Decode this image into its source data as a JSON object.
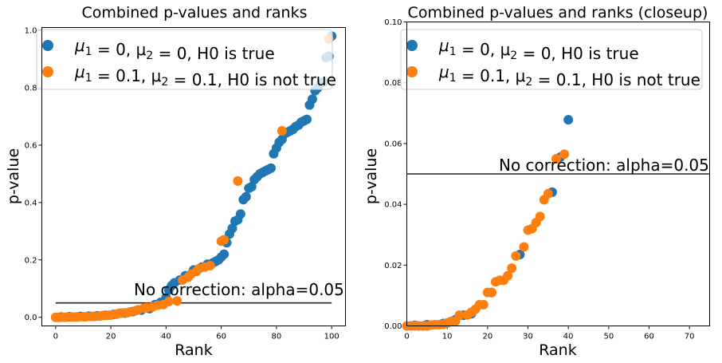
{
  "chart_data": [
    {
      "type": "scatter",
      "title": "Combined p-values and ranks",
      "xlabel": "Rank",
      "ylabel": "p-value",
      "xlim": [
        -5,
        105
      ],
      "ylim": [
        -0.03,
        1.01
      ],
      "xticks": [
        0,
        20,
        40,
        60,
        80,
        100
      ],
      "yticks": [
        0.0,
        0.2,
        0.4,
        0.6,
        0.8,
        1.0
      ],
      "xtick_labels": [
        "0",
        "20",
        "40",
        "60",
        "80",
        "100"
      ],
      "ytick_labels": [
        "0.0",
        "0.2",
        "0.4",
        "0.6",
        "0.8",
        "1.0"
      ],
      "legend_position": "top",
      "hline": {
        "y": 0.05,
        "x": [
          0,
          100
        ],
        "label": "No correction: alpha=0.05"
      },
      "series": [
        {
          "name_parts": {
            "pre": "μ",
            "sub1": "1",
            "mid": " = 0, μ",
            "sub2": "2",
            "post": " = 0, H0 is true"
          },
          "color": "#1f77b4",
          "points": [
            [
              2,
              0.001
            ],
            [
              5,
              0.002
            ],
            [
              9,
              0.003
            ],
            [
              12,
              0.004
            ],
            [
              15,
              0.005
            ],
            [
              18,
              0.007
            ],
            [
              21,
              0.01
            ],
            [
              25,
              0.015
            ],
            [
              28,
              0.02
            ],
            [
              31,
              0.025
            ],
            [
              34,
              0.03
            ],
            [
              36,
              0.044
            ],
            [
              38,
              0.052
            ],
            [
              40,
              0.068
            ],
            [
              41,
              0.095
            ],
            [
              42,
              0.11
            ],
            [
              43,
              0.12
            ],
            [
              45,
              0.13
            ],
            [
              47,
              0.145
            ],
            [
              50,
              0.165
            ],
            [
              53,
              0.175
            ],
            [
              55,
              0.185
            ],
            [
              57,
              0.19
            ],
            [
              58,
              0.195
            ],
            [
              59,
              0.2
            ],
            [
              60,
              0.21
            ],
            [
              61,
              0.22
            ],
            [
              62,
              0.26
            ],
            [
              63,
              0.29
            ],
            [
              64,
              0.31
            ],
            [
              65,
              0.335
            ],
            [
              66,
              0.34
            ],
            [
              67,
              0.36
            ],
            [
              68,
              0.41
            ],
            [
              69,
              0.42
            ],
            [
              70,
              0.45
            ],
            [
              71,
              0.455
            ],
            [
              72,
              0.48
            ],
            [
              73,
              0.49
            ],
            [
              74,
              0.5
            ],
            [
              75,
              0.505
            ],
            [
              76,
              0.51
            ],
            [
              77,
              0.515
            ],
            [
              78,
              0.52
            ],
            [
              79,
              0.57
            ],
            [
              80,
              0.59
            ],
            [
              81,
              0.61
            ],
            [
              82,
              0.62
            ],
            [
              83,
              0.64
            ],
            [
              84,
              0.645
            ],
            [
              85,
              0.65
            ],
            [
              86,
              0.655
            ],
            [
              87,
              0.665
            ],
            [
              88,
              0.67
            ],
            [
              89,
              0.68
            ],
            [
              90,
              0.685
            ],
            [
              91,
              0.69
            ],
            [
              92,
              0.74
            ],
            [
              93,
              0.76
            ],
            [
              94,
              0.79
            ],
            [
              95,
              0.8
            ],
            [
              96,
              0.815
            ],
            [
              97,
              0.82
            ],
            [
              98,
              0.905
            ],
            [
              99,
              0.91
            ],
            [
              100,
              0.98
            ]
          ]
        },
        {
          "name_parts": {
            "pre": "μ",
            "sub1": "1",
            "mid": " = 0.1, μ",
            "sub2": "2",
            "post": " = 0.1, H0 is not true"
          },
          "color": "#ff7f0e",
          "points": [
            [
              0,
              0.0
            ],
            [
              1,
              0.0
            ],
            [
              3,
              0.0002
            ],
            [
              4,
              0.0005
            ],
            [
              6,
              0.0008
            ],
            [
              7,
              0.001
            ],
            [
              8,
              0.0015
            ],
            [
              10,
              0.0018
            ],
            [
              11,
              0.002
            ],
            [
              13,
              0.003
            ],
            [
              14,
              0.0035
            ],
            [
              16,
              0.0045
            ],
            [
              17,
              0.006
            ],
            [
              19,
              0.007
            ],
            [
              20,
              0.008
            ],
            [
              22,
              0.011
            ],
            [
              23,
              0.014
            ],
            [
              24,
              0.015
            ],
            [
              26,
              0.016
            ],
            [
              27,
              0.019
            ],
            [
              29,
              0.023
            ],
            [
              30,
              0.026
            ],
            [
              32,
              0.032
            ],
            [
              33,
              0.034
            ],
            [
              35,
              0.036
            ],
            [
              37,
              0.042
            ],
            [
              39,
              0.044
            ],
            [
              41,
              0.055
            ],
            [
              44,
              0.057
            ],
            [
              46,
              0.13
            ],
            [
              48,
              0.14
            ],
            [
              49,
              0.15
            ],
            [
              51,
              0.16
            ],
            [
              52,
              0.17
            ],
            [
              54,
              0.175
            ],
            [
              56,
              0.18
            ],
            [
              60,
              0.265
            ],
            [
              61,
              0.27
            ],
            [
              66,
              0.475
            ],
            [
              82,
              0.65
            ],
            [
              99,
              0.97
            ]
          ]
        }
      ]
    },
    {
      "type": "scatter",
      "title": "Combined p-values and ranks (closeup)",
      "xlabel": "Rank",
      "ylabel": "p-value",
      "xlim": [
        0,
        75
      ],
      "ylim": [
        0.0,
        0.1
      ],
      "xticks": [
        0,
        10,
        20,
        30,
        40,
        50,
        60,
        70
      ],
      "yticks": [
        0.0,
        0.02,
        0.04,
        0.06,
        0.08,
        0.1
      ],
      "xtick_labels": [
        "0",
        "10",
        "20",
        "30",
        "40",
        "50",
        "60",
        "70"
      ],
      "ytick_labels": [
        "0.00",
        "0.02",
        "0.04",
        "0.06",
        "0.08",
        "0.10"
      ],
      "legend_position": "top",
      "hline": {
        "y": 0.05,
        "x": [
          0,
          75
        ],
        "label": "No correction: alpha=0.05"
      },
      "series": [
        {
          "name_parts": {
            "pre": "μ",
            "sub1": "1",
            "mid": " = 0, μ",
            "sub2": "2",
            "post": " = 0, H0 is true"
          },
          "color": "#1f77b4",
          "points": [
            [
              2,
              0.0002
            ],
            [
              5,
              0.0004
            ],
            [
              9,
              0.0008
            ],
            [
              12,
              0.002
            ],
            [
              14,
              0.0035
            ],
            [
              16,
              0.004
            ],
            [
              21,
              0.011
            ],
            [
              28,
              0.0235
            ],
            [
              36,
              0.044
            ],
            [
              38,
              0.0555
            ],
            [
              40,
              0.0678
            ]
          ]
        },
        {
          "name_parts": {
            "pre": "μ",
            "sub1": "1",
            "mid": " = 0.1, μ",
            "sub2": "2",
            "post": " = 0.1, H0 is not true"
          },
          "color": "#ff7f0e",
          "points": [
            [
              0,
              0.0
            ],
            [
              1,
              0.0
            ],
            [
              2,
              0.0
            ],
            [
              3,
              0.0
            ],
            [
              4,
              0.0
            ],
            [
              5,
              0.0
            ],
            [
              6,
              0.0003
            ],
            [
              7,
              0.0004
            ],
            [
              8,
              0.0004
            ],
            [
              9,
              0.0005
            ],
            [
              10,
              0.001
            ],
            [
              11,
              0.0015
            ],
            [
              12,
              0.0015
            ],
            [
              13,
              0.0035
            ],
            [
              15,
              0.0036
            ],
            [
              16,
              0.0045
            ],
            [
              17,
              0.0055
            ],
            [
              18,
              0.007
            ],
            [
              19,
              0.007
            ],
            [
              20,
              0.011
            ],
            [
              21,
              0.011
            ],
            [
              22,
              0.0145
            ],
            [
              23,
              0.015
            ],
            [
              24,
              0.015
            ],
            [
              25,
              0.0165
            ],
            [
              26,
              0.019
            ],
            [
              27,
              0.023
            ],
            [
              29,
              0.026
            ],
            [
              30,
              0.0315
            ],
            [
              31,
              0.032
            ],
            [
              32,
              0.034
            ],
            [
              33,
              0.036
            ],
            [
              34,
              0.0415
            ],
            [
              35,
              0.0435
            ],
            [
              37,
              0.055
            ],
            [
              39,
              0.0565
            ]
          ]
        }
      ]
    }
  ]
}
